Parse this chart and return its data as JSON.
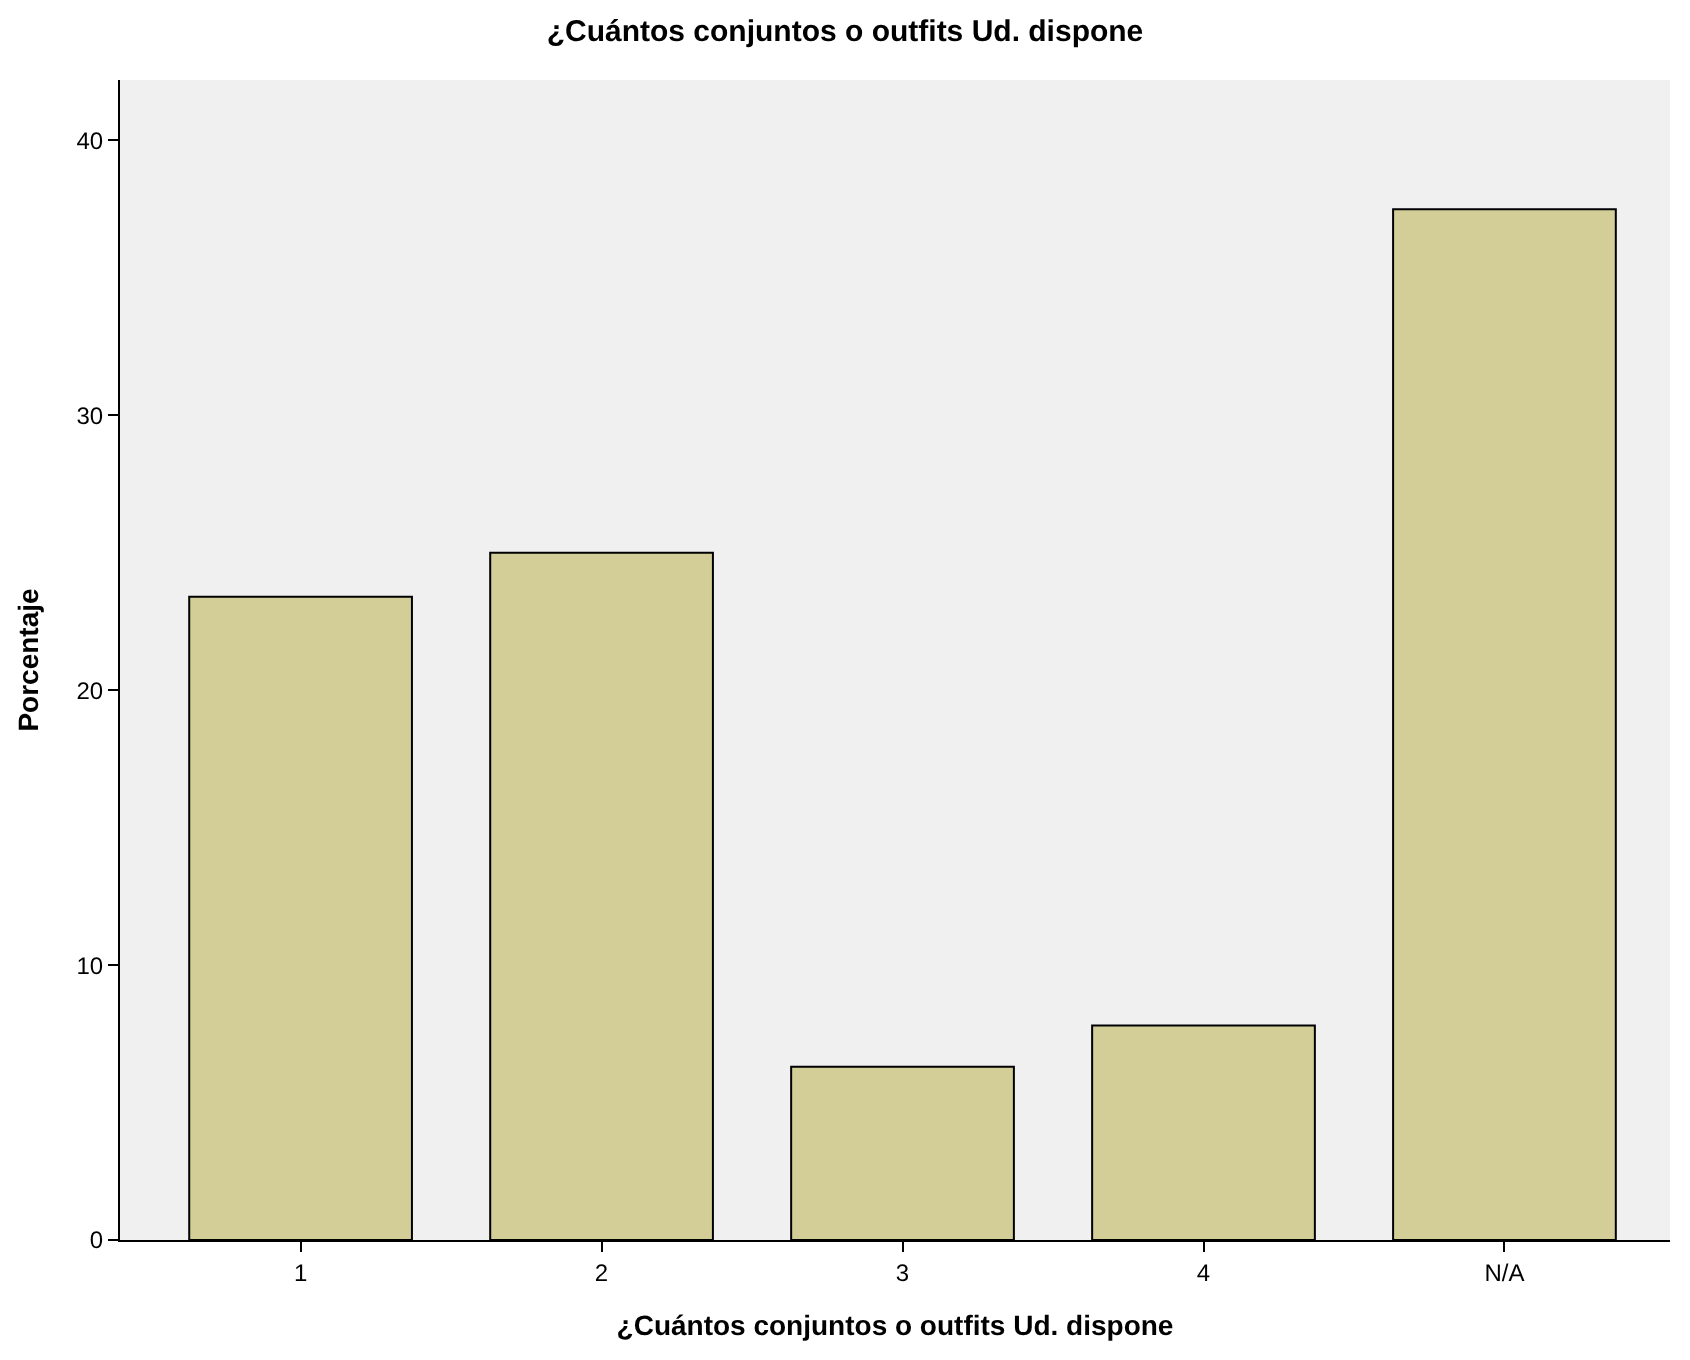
{
  "chart_data": {
    "type": "bar",
    "title": "¿Cuántos conjuntos o outfits Ud. dispone",
    "xlabel": "¿Cuántos conjuntos o outfits Ud. dispone",
    "ylabel": "Porcentaje",
    "categories": [
      "1",
      "2",
      "3",
      "4",
      "N/A"
    ],
    "values": [
      23.4,
      25.0,
      6.3,
      7.8,
      37.5
    ],
    "color": "#d3ce97",
    "ylim": [
      0,
      42.2
    ],
    "yticks": [
      0,
      10,
      20,
      30,
      40
    ],
    "grid": false,
    "legend": false
  }
}
